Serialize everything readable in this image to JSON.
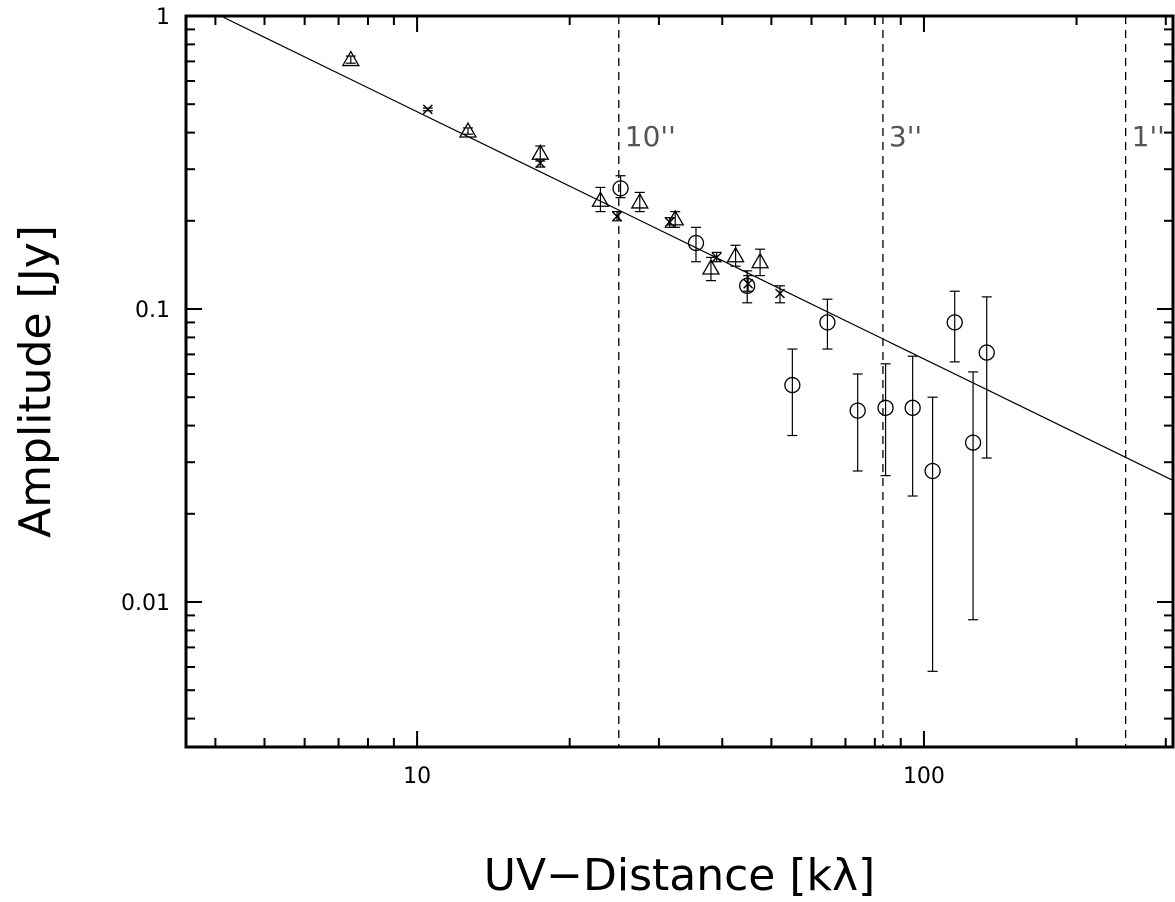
{
  "chart_data": {
    "type": "scatter",
    "title": "",
    "xlabel": "UV−Distance [kλ]",
    "ylabel": "Amplitude [Jy]",
    "xscale": "log",
    "yscale": "log",
    "xlim": [
      3.5,
      310
    ],
    "ylim": [
      0.0032,
      1.0
    ],
    "x_ticks": [
      {
        "value": 10,
        "label": "10"
      },
      {
        "value": 100,
        "label": "100"
      }
    ],
    "y_ticks": [
      {
        "value": 0.01,
        "label": "0.01"
      },
      {
        "value": 0.1,
        "label": "0.1"
      },
      {
        "value": 1,
        "label": "1"
      }
    ],
    "grid": false,
    "legend": "none",
    "fit_line": {
      "points": [
        [
          4.1,
          1.0
        ],
        [
          310,
          0.026
        ]
      ]
    },
    "reference_lines": [
      {
        "x": 25,
        "label": "10''"
      },
      {
        "x": 83,
        "label": "3''"
      },
      {
        "x": 250,
        "label": "1''"
      }
    ],
    "series": [
      {
        "marker": "triangle",
        "points": [
          {
            "x": 7.4,
            "y": 0.71,
            "lo": 0.69,
            "hi": 0.73
          },
          {
            "x": 12.6,
            "y": 0.405,
            "lo": 0.395,
            "hi": 0.415
          },
          {
            "x": 17.5,
            "y": 0.34,
            "lo": 0.32,
            "hi": 0.36
          },
          {
            "x": 23.0,
            "y": 0.235,
            "lo": 0.215,
            "hi": 0.26
          },
          {
            "x": 27.5,
            "y": 0.232,
            "lo": 0.215,
            "hi": 0.25
          },
          {
            "x": 32.3,
            "y": 0.203,
            "lo": 0.19,
            "hi": 0.215
          },
          {
            "x": 38.0,
            "y": 0.138,
            "lo": 0.125,
            "hi": 0.15
          },
          {
            "x": 42.5,
            "y": 0.152,
            "lo": 0.14,
            "hi": 0.165
          },
          {
            "x": 47.5,
            "y": 0.145,
            "lo": 0.13,
            "hi": 0.16
          }
        ]
      },
      {
        "marker": "cross",
        "points": [
          {
            "x": 10.5,
            "y": 0.48,
            "lo": 0.475,
            "hi": 0.485
          },
          {
            "x": 17.5,
            "y": 0.315,
            "lo": 0.305,
            "hi": 0.325
          },
          {
            "x": 24.8,
            "y": 0.207,
            "lo": 0.2,
            "hi": 0.215
          },
          {
            "x": 31.5,
            "y": 0.198,
            "lo": 0.19,
            "hi": 0.205
          },
          {
            "x": 39.0,
            "y": 0.15,
            "lo": 0.145,
            "hi": 0.156
          },
          {
            "x": 45.0,
            "y": 0.122,
            "lo": 0.115,
            "hi": 0.13
          },
          {
            "x": 52.0,
            "y": 0.113,
            "lo": 0.105,
            "hi": 0.12
          }
        ]
      },
      {
        "marker": "circle",
        "points": [
          {
            "x": 25.2,
            "y": 0.258,
            "lo": 0.24,
            "hi": 0.285
          },
          {
            "x": 35.5,
            "y": 0.168,
            "lo": 0.145,
            "hi": 0.19
          },
          {
            "x": 44.8,
            "y": 0.12,
            "lo": 0.105,
            "hi": 0.135
          },
          {
            "x": 55.0,
            "y": 0.055,
            "lo": 0.037,
            "hi": 0.073
          },
          {
            "x": 64.5,
            "y": 0.09,
            "lo": 0.073,
            "hi": 0.108
          },
          {
            "x": 74.0,
            "y": 0.045,
            "lo": 0.028,
            "hi": 0.06
          },
          {
            "x": 84.0,
            "y": 0.046,
            "lo": 0.027,
            "hi": 0.065
          },
          {
            "x": 95.0,
            "y": 0.046,
            "lo": 0.023,
            "hi": 0.069
          },
          {
            "x": 104.0,
            "y": 0.028,
            "lo": 0.0058,
            "hi": 0.05
          },
          {
            "x": 115.0,
            "y": 0.09,
            "lo": 0.066,
            "hi": 0.115
          },
          {
            "x": 125.0,
            "y": 0.035,
            "lo": 0.0087,
            "hi": 0.061
          },
          {
            "x": 133.0,
            "y": 0.071,
            "lo": 0.031,
            "hi": 0.11
          }
        ]
      }
    ]
  }
}
